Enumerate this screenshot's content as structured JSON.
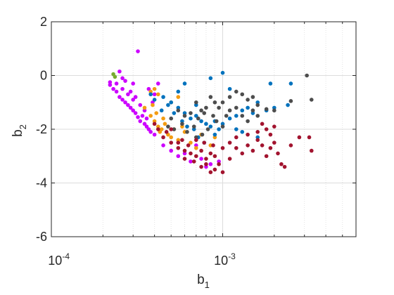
{
  "chart_data": {
    "type": "scatter",
    "title": "",
    "xlabel": {
      "base": "b",
      "subscript": "1"
    },
    "ylabel": {
      "base": "b",
      "subscript": "2"
    },
    "x_scale": "log",
    "xlim": [
      0.0001,
      0.006
    ],
    "ylim": [
      -6,
      2
    ],
    "grid": true,
    "legend": "none",
    "x_ticks": [
      {
        "value": 0.0001,
        "base": "10",
        "exponent": "-4"
      },
      {
        "value": 0.001,
        "base": "10",
        "exponent": "-3"
      }
    ],
    "y_ticks": [
      {
        "value": 2,
        "label": "2"
      },
      {
        "value": 0,
        "label": "0"
      },
      {
        "value": -2,
        "label": "-2"
      },
      {
        "value": -4,
        "label": "-4"
      },
      {
        "value": -6,
        "label": "-6"
      }
    ],
    "series": [
      {
        "color": "#CC00FF",
        "points": [
          [
            0.00025,
            0.15
          ],
          [
            0.00032,
            0.9
          ],
          [
            0.00027,
            -0.2
          ],
          [
            0.00022,
            -0.35
          ],
          [
            0.00023,
            -0.5
          ],
          [
            0.00024,
            -0.6
          ],
          [
            0.00025,
            -0.8
          ],
          [
            0.00026,
            -0.9
          ],
          [
            0.00027,
            -1.0
          ],
          [
            0.00028,
            -1.1
          ],
          [
            0.00029,
            -1.2
          ],
          [
            0.0003,
            -1.3
          ],
          [
            0.00031,
            -1.4
          ],
          [
            0.00032,
            -1.55
          ],
          [
            0.00033,
            -1.7
          ],
          [
            0.00035,
            -1.8
          ],
          [
            0.00036,
            -1.9
          ],
          [
            0.00034,
            -1.5
          ],
          [
            0.00037,
            -2.0
          ],
          [
            0.00038,
            -2.1
          ],
          [
            0.0004,
            -2.2
          ],
          [
            0.00026,
            -0.5
          ],
          [
            0.00028,
            -0.7
          ],
          [
            0.0003,
            -0.9
          ],
          [
            0.00029,
            -0.6
          ],
          [
            0.00031,
            -0.8
          ],
          [
            0.00024,
            -0.3
          ],
          [
            0.00022,
            -0.25
          ],
          [
            0.00033,
            -1.1
          ],
          [
            0.00035,
            -1.3
          ],
          [
            0.00036,
            -1.6
          ],
          [
            0.00045,
            -2.6
          ],
          [
            0.0005,
            -2.8
          ],
          [
            0.00055,
            -3.0
          ],
          [
            0.0006,
            -2.9
          ],
          [
            0.00065,
            -3.2
          ],
          [
            0.00075,
            -3.1
          ],
          [
            0.0008,
            -3.4
          ],
          [
            0.00085,
            -3.3
          ],
          [
            0.00095,
            -3.2
          ],
          [
            0.0007,
            -2.6
          ],
          [
            0.00042,
            -0.3
          ],
          [
            0.00037,
            -0.5
          ],
          [
            0.00039,
            -1.0
          ],
          [
            0.0004,
            -0.7
          ],
          [
            0.0003,
            -0.3
          ],
          [
            0.00026,
            -0.1
          ]
        ]
      },
      {
        "color": "#F39C12",
        "points": [
          [
            0.00035,
            -1.2
          ],
          [
            0.00038,
            -1.5
          ],
          [
            0.0004,
            -1.7
          ],
          [
            0.00042,
            -1.9
          ],
          [
            0.00044,
            -2.0
          ],
          [
            0.00046,
            -1.8
          ],
          [
            0.00048,
            -2.2
          ],
          [
            0.0005,
            -2.3
          ],
          [
            0.00045,
            -1.6
          ],
          [
            0.00041,
            -1.4
          ],
          [
            0.00039,
            -1.1
          ],
          [
            0.00043,
            -2.1
          ],
          [
            0.00052,
            -2.0
          ],
          [
            0.00055,
            -2.4
          ],
          [
            0.00058,
            -1.9
          ],
          [
            0.0006,
            -2.1
          ],
          [
            0.00065,
            -2.5
          ],
          [
            0.0007,
            -2.7
          ],
          [
            0.00075,
            -2.2
          ],
          [
            0.00085,
            -2.6
          ],
          [
            0.0009,
            -2.3
          ],
          [
            0.00038,
            -0.6
          ],
          [
            0.0004,
            -0.5
          ],
          [
            0.00042,
            -0.7
          ],
          [
            0.00055,
            -0.8
          ],
          [
            0.0005,
            -1.0
          ]
        ]
      },
      {
        "color": "#0072BD",
        "points": [
          [
            0.00038,
            -0.7
          ],
          [
            0.00045,
            -0.8
          ],
          [
            0.0005,
            -1.0
          ],
          [
            0.00055,
            -1.2
          ],
          [
            0.0006,
            -1.4
          ],
          [
            0.00065,
            -1.6
          ],
          [
            0.0007,
            -1.5
          ],
          [
            0.00075,
            -1.7
          ],
          [
            0.0008,
            -1.8
          ],
          [
            0.00085,
            -1.9
          ],
          [
            0.0009,
            -1.7
          ],
          [
            0.00095,
            -2.0
          ],
          [
            0.001,
            -1.8
          ],
          [
            0.0011,
            -1.6
          ],
          [
            0.0012,
            -1.5
          ],
          [
            0.0013,
            -1.3
          ],
          [
            0.0014,
            -1.2
          ],
          [
            0.0015,
            -1.4
          ],
          [
            0.0016,
            -1.0
          ],
          [
            0.0018,
            -1.3
          ],
          [
            0.002,
            -1.2
          ],
          [
            0.0024,
            -1.1
          ],
          [
            0.0025,
            -0.3
          ],
          [
            0.0019,
            -0.3
          ],
          [
            0.0011,
            -0.5
          ],
          [
            0.001,
            0.1
          ],
          [
            0.00085,
            -0.1
          ],
          [
            0.0006,
            -0.3
          ],
          [
            0.00055,
            -0.6
          ],
          [
            0.0007,
            -1.1
          ],
          [
            0.00072,
            -2.3
          ],
          [
            0.00078,
            -2.5
          ],
          [
            0.0009,
            -2.2
          ],
          [
            0.00068,
            -2.0
          ],
          [
            0.00062,
            -1.9
          ],
          [
            0.00058,
            -1.7
          ],
          [
            0.00052,
            -1.4
          ],
          [
            0.0012,
            -2.0
          ],
          [
            0.0013,
            -2.1
          ],
          [
            0.0016,
            -2.3
          ],
          [
            0.00048,
            -1.1
          ],
          [
            0.00044,
            -1.3
          ],
          [
            0.0004,
            -0.9
          ]
        ]
      },
      {
        "color": "#4D4D4D",
        "points": [
          [
            0.0031,
            0.0
          ],
          [
            0.0033,
            -0.9
          ],
          [
            0.0025,
            -0.95
          ],
          [
            0.002,
            -1.3
          ],
          [
            0.0018,
            -1.25
          ],
          [
            0.0016,
            -1.1
          ],
          [
            0.0015,
            -1.3
          ],
          [
            0.0014,
            -0.9
          ],
          [
            0.0013,
            -0.7
          ],
          [
            0.0012,
            -0.6
          ],
          [
            0.0011,
            -0.8
          ],
          [
            0.001,
            -1.0
          ],
          [
            0.00095,
            -1.2
          ],
          [
            0.0009,
            -1.0
          ],
          [
            0.00085,
            -0.8
          ],
          [
            0.0008,
            -1.2
          ],
          [
            0.00075,
            -1.3
          ],
          [
            0.0007,
            -1.0
          ],
          [
            0.00065,
            -1.4
          ],
          [
            0.0006,
            -1.5
          ],
          [
            0.00055,
            -1.3
          ],
          [
            0.0005,
            -1.6
          ],
          [
            0.00048,
            -1.9
          ],
          [
            0.00052,
            -2.0
          ],
          [
            0.00058,
            -1.8
          ],
          [
            0.00062,
            -2.1
          ],
          [
            0.00068,
            -1.9
          ],
          [
            0.00072,
            -1.6
          ],
          [
            0.00078,
            -1.4
          ],
          [
            0.00088,
            -1.5
          ],
          [
            0.00092,
            -1.7
          ],
          [
            0.001,
            -1.9
          ],
          [
            0.00105,
            -1.5
          ],
          [
            0.0011,
            -1.3
          ],
          [
            0.0012,
            -1.2
          ],
          [
            0.0013,
            -1.5
          ],
          [
            0.0014,
            -1.7
          ],
          [
            0.0015,
            -0.8
          ],
          [
            0.0016,
            -1.5
          ],
          [
            0.00082,
            -2.0
          ],
          [
            0.00076,
            -2.2
          ],
          [
            0.0007,
            -2.3
          ]
        ]
      },
      {
        "color": "#A2142F",
        "points": [
          [
            0.00045,
            -2.3
          ],
          [
            0.0005,
            -2.5
          ],
          [
            0.00055,
            -2.7
          ],
          [
            0.0006,
            -2.8
          ],
          [
            0.00065,
            -2.9
          ],
          [
            0.0007,
            -3.0
          ],
          [
            0.00075,
            -2.8
          ],
          [
            0.0008,
            -3.1
          ],
          [
            0.00085,
            -2.9
          ],
          [
            0.0009,
            -3.0
          ],
          [
            0.00095,
            -3.3
          ],
          [
            0.001,
            -3.6
          ],
          [
            0.0011,
            -3.1
          ],
          [
            0.0012,
            -2.7
          ],
          [
            0.0013,
            -2.9
          ],
          [
            0.0014,
            -2.6
          ],
          [
            0.0015,
            -2.8
          ],
          [
            0.0016,
            -2.4
          ],
          [
            0.0017,
            -2.6
          ],
          [
            0.0018,
            -3.0
          ],
          [
            0.0019,
            -2.7
          ],
          [
            0.002,
            -2.5
          ],
          [
            0.0022,
            -3.3
          ],
          [
            0.0023,
            -3.4
          ],
          [
            0.0021,
            -2.9
          ],
          [
            0.0025,
            -2.6
          ],
          [
            0.0028,
            -2.3
          ],
          [
            0.0032,
            -2.3
          ],
          [
            0.0033,
            -2.8
          ],
          [
            0.0018,
            -2.0
          ],
          [
            0.0016,
            -2.1
          ],
          [
            0.0014,
            -2.2
          ],
          [
            0.0012,
            -2.3
          ],
          [
            0.0011,
            -2.5
          ],
          [
            0.001,
            -2.7
          ],
          [
            0.00088,
            -2.6
          ],
          [
            0.00078,
            -2.5
          ],
          [
            0.0007,
            -2.4
          ],
          [
            0.00063,
            -2.6
          ],
          [
            0.00058,
            -2.4
          ],
          [
            0.0005,
            -2.0
          ],
          [
            0.00047,
            -2.1
          ],
          [
            0.00042,
            -2.0
          ],
          [
            0.0004,
            -1.8
          ],
          [
            0.0009,
            -3.5
          ],
          [
            0.00085,
            -3.6
          ],
          [
            0.00075,
            -3.4
          ],
          [
            0.0008,
            -3.3
          ],
          [
            0.00068,
            -3.2
          ],
          [
            0.0006,
            -3.1
          ],
          [
            0.00055,
            -2.5
          ],
          [
            0.0019,
            -2.2
          ],
          [
            0.0017,
            -1.8
          ],
          [
            0.002,
            -1.9
          ]
        ]
      },
      {
        "color": "#77AC30",
        "points": [
          [
            0.00023,
            0.05
          ],
          [
            0.000235,
            -0.05
          ]
        ]
      }
    ]
  }
}
